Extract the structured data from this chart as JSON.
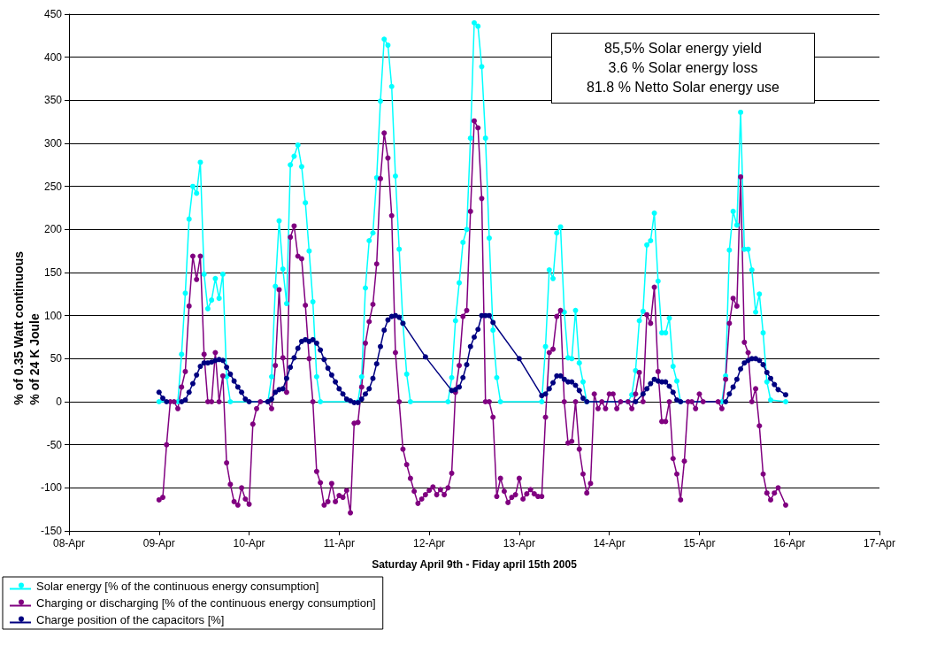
{
  "chart_data": {
    "type": "line",
    "xlabel": "Saturday April 9th - Fiday april 15th 2005",
    "ylabel": "% of 0.35 Watt continuous\n% of 24 K Joule",
    "xlim": [
      "2005-04-08T00:00",
      "2005-04-17T00:00"
    ],
    "xticks": [
      {
        "value": "2005-04-08T00:00",
        "label": "08-Apr"
      },
      {
        "value": "2005-04-09T00:00",
        "label": "09-Apr"
      },
      {
        "value": "2005-04-10T00:00",
        "label": "10-Apr"
      },
      {
        "value": "2005-04-11T00:00",
        "label": "11-Apr"
      },
      {
        "value": "2005-04-12T00:00",
        "label": "12-Apr"
      },
      {
        "value": "2005-04-13T00:00",
        "label": "13-Apr"
      },
      {
        "value": "2005-04-14T00:00",
        "label": "14-Apr"
      },
      {
        "value": "2005-04-15T00:00",
        "label": "15-Apr"
      },
      {
        "value": "2005-04-16T00:00",
        "label": "16-Apr"
      },
      {
        "value": "2005-04-17T00:00",
        "label": "17-Apr"
      }
    ],
    "ylim": [
      -150,
      450
    ],
    "yticks": [
      -150,
      -100,
      -50,
      0,
      50,
      100,
      150,
      200,
      250,
      300,
      350,
      400,
      450
    ],
    "grid": "y",
    "legend": "bottom",
    "marker": "circle",
    "line_style": "solid",
    "annotations": [
      "85,5%  Solar energy yield",
      "3.6 % Solar energy loss",
      "81.8 % Netto Solar energy use"
    ],
    "series": [
      {
        "name": "Solar energy [% of the continuous energy consumption]",
        "color": "#00ffff",
        "x": [
          "2005-04-09T00:00",
          "2005-04-09T05:00",
          "2005-04-09T06:00",
          "2005-04-09T07:00",
          "2005-04-09T08:00",
          "2005-04-09T09:00",
          "2005-04-09T10:00",
          "2005-04-09T11:00",
          "2005-04-09T12:00",
          "2005-04-09T13:00",
          "2005-04-09T14:00",
          "2005-04-09T15:00",
          "2005-04-09T16:00",
          "2005-04-09T17:00",
          "2005-04-09T18:00",
          "2005-04-09T19:00",
          "2005-04-10T05:00",
          "2005-04-10T06:00",
          "2005-04-10T07:00",
          "2005-04-10T08:00",
          "2005-04-10T09:00",
          "2005-04-10T10:00",
          "2005-04-10T11:00",
          "2005-04-10T12:00",
          "2005-04-10T13:00",
          "2005-04-10T14:00",
          "2005-04-10T15:00",
          "2005-04-10T16:00",
          "2005-04-10T17:00",
          "2005-04-10T18:00",
          "2005-04-10T19:00",
          "2005-04-11T05:00",
          "2005-04-11T06:00",
          "2005-04-11T07:00",
          "2005-04-11T08:00",
          "2005-04-11T09:00",
          "2005-04-11T10:00",
          "2005-04-11T11:00",
          "2005-04-11T12:00",
          "2005-04-11T13:00",
          "2005-04-11T14:00",
          "2005-04-11T15:00",
          "2005-04-11T16:00",
          "2005-04-11T17:00",
          "2005-04-11T18:00",
          "2005-04-11T19:00",
          "2005-04-12T05:00",
          "2005-04-12T06:00",
          "2005-04-12T07:00",
          "2005-04-12T08:00",
          "2005-04-12T09:00",
          "2005-04-12T10:00",
          "2005-04-12T11:00",
          "2005-04-12T12:00",
          "2005-04-12T13:00",
          "2005-04-12T14:00",
          "2005-04-12T15:00",
          "2005-04-12T16:00",
          "2005-04-12T17:00",
          "2005-04-12T18:00",
          "2005-04-12T19:00",
          "2005-04-13T06:00",
          "2005-04-13T07:00",
          "2005-04-13T08:00",
          "2005-04-13T09:00",
          "2005-04-13T10:00",
          "2005-04-13T11:00",
          "2005-04-13T12:00",
          "2005-04-13T13:00",
          "2005-04-13T14:00",
          "2005-04-13T15:00",
          "2005-04-13T16:00",
          "2005-04-13T17:00",
          "2005-04-13T18:00",
          "2005-04-14T05:00",
          "2005-04-14T06:00",
          "2005-04-14T07:00",
          "2005-04-14T08:00",
          "2005-04-14T09:00",
          "2005-04-14T10:00",
          "2005-04-14T11:00",
          "2005-04-14T12:00",
          "2005-04-14T13:00",
          "2005-04-14T14:00",
          "2005-04-14T15:00",
          "2005-04-14T16:00",
          "2005-04-14T17:00",
          "2005-04-14T18:00",
          "2005-04-14T19:00",
          "2005-04-15T06:00",
          "2005-04-15T07:00",
          "2005-04-15T08:00",
          "2005-04-15T09:00",
          "2005-04-15T10:00",
          "2005-04-15T11:00",
          "2005-04-15T12:00",
          "2005-04-15T13:00",
          "2005-04-15T14:00",
          "2005-04-15T15:00",
          "2005-04-15T16:00",
          "2005-04-15T17:00",
          "2005-04-15T18:00",
          "2005-04-15T19:00",
          "2005-04-15T23:00"
        ],
        "values": [
          0,
          0,
          55,
          126,
          212,
          250,
          242,
          278,
          148,
          108,
          118,
          143,
          120,
          148,
          29,
          0,
          0,
          29,
          134,
          210,
          154,
          114,
          275,
          285,
          298,
          273,
          231,
          175,
          116,
          29,
          0,
          0,
          29,
          132,
          187,
          196,
          260,
          349,
          421,
          414,
          366,
          262,
          177,
          91,
          32,
          0,
          0,
          28,
          94,
          138,
          185,
          200,
          306,
          440,
          436,
          389,
          306,
          190,
          83,
          28,
          0,
          0,
          64,
          153,
          143,
          196,
          203,
          104,
          51,
          50,
          106,
          45,
          23,
          0,
          0,
          8,
          36,
          94,
          105,
          182,
          187,
          219,
          140,
          80,
          80,
          97,
          41,
          24,
          0,
          0,
          30,
          176,
          221,
          205,
          336,
          177,
          177,
          153,
          104,
          125,
          80,
          23,
          2,
          0
        ]
      },
      {
        "name": "Charging or discharging [% of the continuous energy consumption]",
        "color": "#800080",
        "x": [
          "2005-04-09T00:00",
          "2005-04-09T01:00",
          "2005-04-09T02:00",
          "2005-04-09T03:00",
          "2005-04-09T04:00",
          "2005-04-09T05:00",
          "2005-04-09T06:00",
          "2005-04-09T07:00",
          "2005-04-09T08:00",
          "2005-04-09T09:00",
          "2005-04-09T10:00",
          "2005-04-09T11:00",
          "2005-04-09T12:00",
          "2005-04-09T13:00",
          "2005-04-09T14:00",
          "2005-04-09T15:00",
          "2005-04-09T16:00",
          "2005-04-09T17:00",
          "2005-04-09T18:00",
          "2005-04-09T19:00",
          "2005-04-09T20:00",
          "2005-04-09T21:00",
          "2005-04-09T22:00",
          "2005-04-09T23:00",
          "2005-04-10T00:00",
          "2005-04-10T01:00",
          "2005-04-10T02:00",
          "2005-04-10T03:00",
          "2005-04-10T05:00",
          "2005-04-10T06:00",
          "2005-04-10T07:00",
          "2005-04-10T08:00",
          "2005-04-10T09:00",
          "2005-04-10T10:00",
          "2005-04-10T11:00",
          "2005-04-10T12:00",
          "2005-04-10T13:00",
          "2005-04-10T14:00",
          "2005-04-10T15:00",
          "2005-04-10T16:00",
          "2005-04-10T17:00",
          "2005-04-10T18:00",
          "2005-04-10T19:00",
          "2005-04-10T20:00",
          "2005-04-10T21:00",
          "2005-04-10T22:00",
          "2005-04-10T23:00",
          "2005-04-11T00:00",
          "2005-04-11T01:00",
          "2005-04-11T02:00",
          "2005-04-11T03:00",
          "2005-04-11T04:00",
          "2005-04-11T05:00",
          "2005-04-11T06:00",
          "2005-04-11T07:00",
          "2005-04-11T08:00",
          "2005-04-11T09:00",
          "2005-04-11T10:00",
          "2005-04-11T11:00",
          "2005-04-11T12:00",
          "2005-04-11T13:00",
          "2005-04-11T14:00",
          "2005-04-11T15:00",
          "2005-04-11T16:00",
          "2005-04-11T17:00",
          "2005-04-11T18:00",
          "2005-04-11T19:00",
          "2005-04-11T20:00",
          "2005-04-11T21:00",
          "2005-04-11T22:00",
          "2005-04-11T23:00",
          "2005-04-12T00:00",
          "2005-04-12T01:00",
          "2005-04-12T02:00",
          "2005-04-12T03:00",
          "2005-04-12T04:00",
          "2005-04-12T05:00",
          "2005-04-12T06:00",
          "2005-04-12T07:00",
          "2005-04-12T08:00",
          "2005-04-12T09:00",
          "2005-04-12T10:00",
          "2005-04-12T11:00",
          "2005-04-12T12:00",
          "2005-04-12T13:00",
          "2005-04-12T14:00",
          "2005-04-12T15:00",
          "2005-04-12T16:00",
          "2005-04-12T17:00",
          "2005-04-12T18:00",
          "2005-04-12T19:00",
          "2005-04-12T20:00",
          "2005-04-12T21:00",
          "2005-04-12T22:00",
          "2005-04-12T23:00",
          "2005-04-13T00:00",
          "2005-04-13T01:00",
          "2005-04-13T02:00",
          "2005-04-13T03:00",
          "2005-04-13T04:00",
          "2005-04-13T05:00",
          "2005-04-13T06:00",
          "2005-04-13T07:00",
          "2005-04-13T08:00",
          "2005-04-13T09:00",
          "2005-04-13T10:00",
          "2005-04-13T11:00",
          "2005-04-13T12:00",
          "2005-04-13T13:00",
          "2005-04-13T14:00",
          "2005-04-13T15:00",
          "2005-04-13T16:00",
          "2005-04-13T17:00",
          "2005-04-13T18:00",
          "2005-04-13T19:00",
          "2005-04-13T20:00",
          "2005-04-13T21:00",
          "2005-04-13T22:00",
          "2005-04-13T23:00",
          "2005-04-14T00:00",
          "2005-04-14T01:00",
          "2005-04-14T02:00",
          "2005-04-14T03:00",
          "2005-04-14T05:00",
          "2005-04-14T06:00",
          "2005-04-14T07:00",
          "2005-04-14T08:00",
          "2005-04-14T09:00",
          "2005-04-14T10:00",
          "2005-04-14T11:00",
          "2005-04-14T12:00",
          "2005-04-14T13:00",
          "2005-04-14T14:00",
          "2005-04-14T15:00",
          "2005-04-14T16:00",
          "2005-04-14T17:00",
          "2005-04-14T18:00",
          "2005-04-14T19:00",
          "2005-04-14T20:00",
          "2005-04-14T21:00",
          "2005-04-14T22:00",
          "2005-04-14T23:00",
          "2005-04-15T00:00",
          "2005-04-15T01:00",
          "2005-04-15T05:00",
          "2005-04-15T06:00",
          "2005-04-15T07:00",
          "2005-04-15T08:00",
          "2005-04-15T09:00",
          "2005-04-15T10:00",
          "2005-04-15T11:00",
          "2005-04-15T12:00",
          "2005-04-15T13:00",
          "2005-04-15T14:00",
          "2005-04-15T15:00",
          "2005-04-15T16:00",
          "2005-04-15T17:00",
          "2005-04-15T18:00",
          "2005-04-15T19:00",
          "2005-04-15T20:00",
          "2005-04-15T21:00",
          "2005-04-15T23:00"
        ],
        "values": [
          -114,
          -111,
          -50,
          0,
          0,
          -8,
          17,
          35,
          111,
          169,
          142,
          169,
          55,
          0,
          0,
          57,
          0,
          30,
          -71,
          -96,
          -116,
          -120,
          -100,
          -113,
          -119,
          -26,
          -8,
          0,
          0,
          -8,
          42,
          130,
          51,
          11,
          191,
          204,
          169,
          166,
          112,
          50,
          0,
          -81,
          -94,
          -120,
          -116,
          -95,
          -116,
          -109,
          -111,
          -103,
          -129,
          -25,
          -24,
          17,
          68,
          93,
          113,
          160,
          259,
          312,
          283,
          216,
          57,
          0,
          -55,
          -73,
          -89,
          -104,
          -118,
          -113,
          -108,
          -103,
          -99,
          -108,
          -102,
          -108,
          -100,
          -83,
          11,
          42,
          99,
          106,
          221,
          326,
          318,
          236,
          0,
          0,
          -18,
          -110,
          -89,
          -104,
          -117,
          -111,
          -108,
          -89,
          -113,
          -107,
          -102,
          -107,
          -110,
          -110,
          -18,
          57,
          61,
          99,
          106,
          0,
          -48,
          -46,
          0,
          -55,
          -84,
          -106,
          -95,
          9,
          -8,
          0,
          -8,
          9,
          9,
          -8,
          0,
          0,
          -8,
          9,
          34,
          0,
          101,
          91,
          133,
          35,
          -23,
          -23,
          0,
          -66,
          -84,
          -114,
          -69,
          0,
          0,
          -8,
          9,
          0,
          0,
          -8,
          26,
          91,
          120,
          111,
          261,
          69,
          57,
          0,
          15,
          -28,
          -84,
          -106,
          -114,
          -106,
          -100,
          -120
        ]
      },
      {
        "name": "Charge position of the capacitors [%]",
        "color": "#000080",
        "x": [
          "2005-04-09T00:00",
          "2005-04-09T01:00",
          "2005-04-09T02:00",
          "2005-04-09T06:00",
          "2005-04-09T07:00",
          "2005-04-09T08:00",
          "2005-04-09T09:00",
          "2005-04-09T10:00",
          "2005-04-09T11:00",
          "2005-04-09T12:00",
          "2005-04-09T13:00",
          "2005-04-09T14:00",
          "2005-04-09T15:00",
          "2005-04-09T16:00",
          "2005-04-09T17:00",
          "2005-04-09T18:00",
          "2005-04-09T19:00",
          "2005-04-09T20:00",
          "2005-04-09T21:00",
          "2005-04-09T22:00",
          "2005-04-09T23:00",
          "2005-04-10T00:00",
          "2005-04-10T05:00",
          "2005-04-10T06:00",
          "2005-04-10T07:00",
          "2005-04-10T08:00",
          "2005-04-10T09:00",
          "2005-04-10T10:00",
          "2005-04-10T11:00",
          "2005-04-10T12:00",
          "2005-04-10T13:00",
          "2005-04-10T14:00",
          "2005-04-10T15:00",
          "2005-04-10T16:00",
          "2005-04-10T17:00",
          "2005-04-10T18:00",
          "2005-04-10T19:00",
          "2005-04-10T20:00",
          "2005-04-10T21:00",
          "2005-04-10T22:00",
          "2005-04-10T23:00",
          "2005-04-11T00:00",
          "2005-04-11T01:00",
          "2005-04-11T02:00",
          "2005-04-11T03:00",
          "2005-04-11T04:00",
          "2005-04-11T05:00",
          "2005-04-11T06:00",
          "2005-04-11T07:00",
          "2005-04-11T08:00",
          "2005-04-11T09:00",
          "2005-04-11T10:00",
          "2005-04-11T11:00",
          "2005-04-11T12:00",
          "2005-04-11T13:00",
          "2005-04-11T14:00",
          "2005-04-11T15:00",
          "2005-04-11T16:00",
          "2005-04-11T17:00",
          "2005-04-11T23:00",
          "2005-04-12T06:00",
          "2005-04-12T07:00",
          "2005-04-12T08:00",
          "2005-04-12T09:00",
          "2005-04-12T10:00",
          "2005-04-12T11:00",
          "2005-04-12T12:00",
          "2005-04-12T13:00",
          "2005-04-12T14:00",
          "2005-04-12T15:00",
          "2005-04-12T16:00",
          "2005-04-12T17:00",
          "2005-04-13T00:00",
          "2005-04-13T06:00",
          "2005-04-13T07:00",
          "2005-04-13T08:00",
          "2005-04-13T09:00",
          "2005-04-13T10:00",
          "2005-04-13T11:00",
          "2005-04-13T12:00",
          "2005-04-13T13:00",
          "2005-04-13T14:00",
          "2005-04-13T15:00",
          "2005-04-13T16:00",
          "2005-04-13T17:00",
          "2005-04-13T18:00",
          "2005-04-14T07:00",
          "2005-04-14T09:00",
          "2005-04-14T10:00",
          "2005-04-14T11:00",
          "2005-04-14T12:00",
          "2005-04-14T13:00",
          "2005-04-14T14:00",
          "2005-04-14T15:00",
          "2005-04-14T16:00",
          "2005-04-14T17:00",
          "2005-04-14T18:00",
          "2005-04-14T19:00",
          "2005-04-15T07:00",
          "2005-04-15T08:00",
          "2005-04-15T09:00",
          "2005-04-15T10:00",
          "2005-04-15T11:00",
          "2005-04-15T12:00",
          "2005-04-15T13:00",
          "2005-04-15T14:00",
          "2005-04-15T15:00",
          "2005-04-15T16:00",
          "2005-04-15T17:00",
          "2005-04-15T18:00",
          "2005-04-15T19:00",
          "2005-04-15T20:00",
          "2005-04-15T21:00",
          "2005-04-15T23:00"
        ],
        "values": [
          11,
          4,
          0,
          0,
          2,
          11,
          21,
          31,
          41,
          45,
          45,
          46,
          48,
          49,
          48,
          40,
          32,
          24,
          17,
          11,
          3,
          0,
          0,
          3,
          11,
          14,
          15,
          27,
          40,
          51,
          62,
          70,
          72,
          70,
          72,
          68,
          60,
          49,
          39,
          31,
          23,
          15,
          9,
          3,
          1,
          -1,
          -1,
          3,
          9,
          15,
          27,
          44,
          64,
          83,
          95,
          99,
          100,
          98,
          91,
          52,
          13,
          14,
          17,
          28,
          43,
          64,
          75,
          84,
          100,
          100,
          100,
          92,
          50,
          7,
          9,
          15,
          22,
          30,
          30,
          26,
          23,
          23,
          19,
          13,
          4,
          0,
          0,
          9,
          15,
          21,
          26,
          24,
          23,
          23,
          18,
          11,
          2,
          0,
          0,
          9,
          17,
          26,
          38,
          45,
          48,
          50,
          50,
          48,
          43,
          34,
          27,
          20,
          14,
          8
        ]
      }
    ]
  }
}
